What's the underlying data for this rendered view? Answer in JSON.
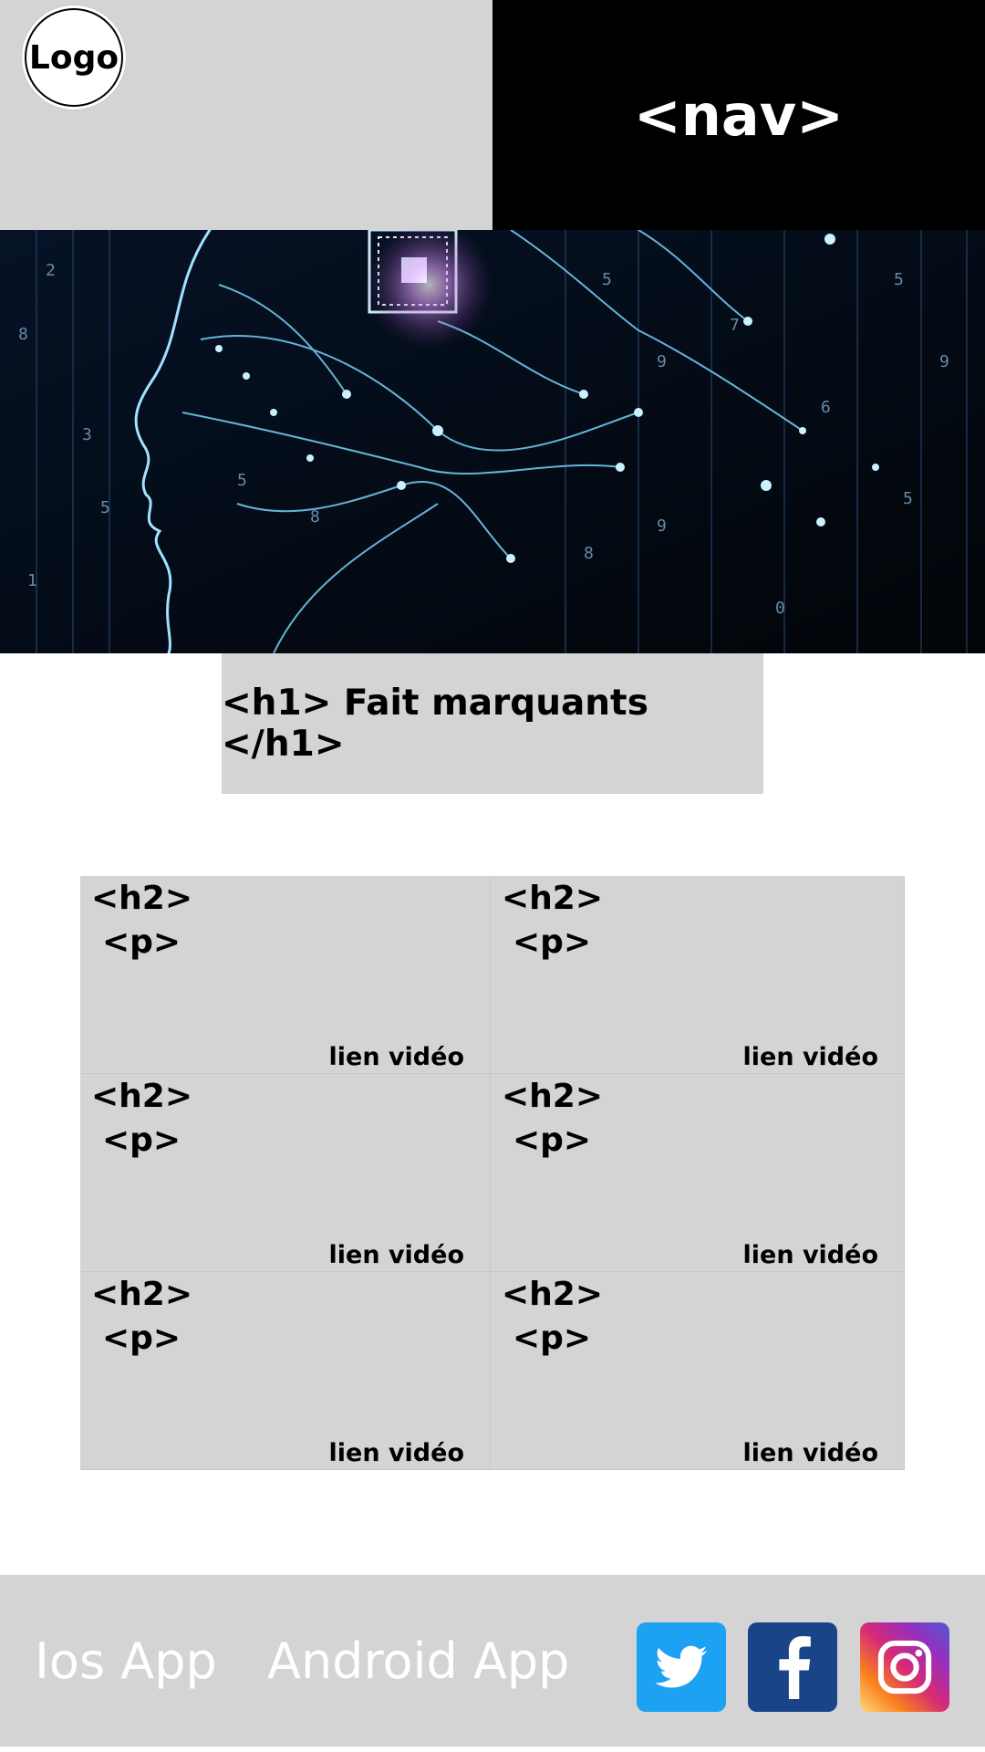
{
  "header": {
    "logo_text": "Logo",
    "nav_text": "<nav>"
  },
  "hero": {
    "image": "ai-circuit-head-illustration"
  },
  "headline": {
    "text": "<h1> Fait marquants </h1>"
  },
  "cards": [
    {
      "h2": "<h2>",
      "p": "<p>",
      "link": "lien vidéo"
    },
    {
      "h2": "<h2>",
      "p": "<p>",
      "link": "lien vidéo"
    },
    {
      "h2": "<h2>",
      "p": "<p>",
      "link": "lien vidéo"
    },
    {
      "h2": "<h2>",
      "p": "<p>",
      "link": "lien vidéo"
    },
    {
      "h2": "<h2>",
      "p": "<p>",
      "link": "lien vidéo"
    },
    {
      "h2": "<h2>",
      "p": "<p>",
      "link": "lien vidéo"
    }
  ],
  "footer": {
    "ios_label": "Ios App",
    "android_label": "Android App",
    "social": [
      "twitter-icon",
      "facebook-icon",
      "instagram-icon"
    ]
  },
  "colors": {
    "gray": "#d4d4d4",
    "nav_bg": "#000000",
    "twitter": "#1da1f2",
    "facebook": "#1a4488"
  }
}
